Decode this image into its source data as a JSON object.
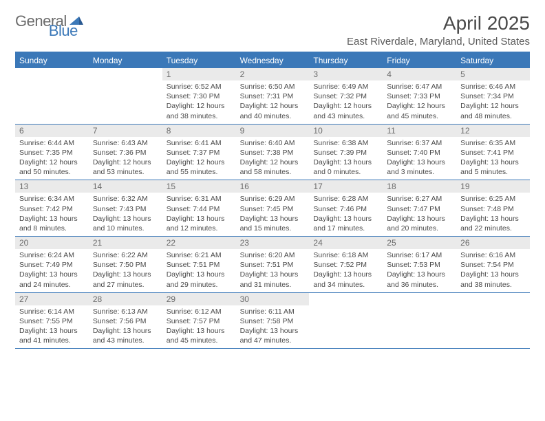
{
  "brand": {
    "part1": "General",
    "part2": "Blue"
  },
  "title": "April 2025",
  "location": "East Riverdale, Maryland, United States",
  "colors": {
    "accent": "#3b78b8",
    "header_text": "#ffffff",
    "daynum_bg": "#eaeaea",
    "body_text": "#4a4a4a",
    "logo_gray": "#6b6b6b"
  },
  "day_names": [
    "Sunday",
    "Monday",
    "Tuesday",
    "Wednesday",
    "Thursday",
    "Friday",
    "Saturday"
  ],
  "weeks": [
    [
      {
        "n": "",
        "sr": "",
        "ss": "",
        "dl": ""
      },
      {
        "n": "",
        "sr": "",
        "ss": "",
        "dl": ""
      },
      {
        "n": "1",
        "sr": "Sunrise: 6:52 AM",
        "ss": "Sunset: 7:30 PM",
        "dl": "Daylight: 12 hours and 38 minutes."
      },
      {
        "n": "2",
        "sr": "Sunrise: 6:50 AM",
        "ss": "Sunset: 7:31 PM",
        "dl": "Daylight: 12 hours and 40 minutes."
      },
      {
        "n": "3",
        "sr": "Sunrise: 6:49 AM",
        "ss": "Sunset: 7:32 PM",
        "dl": "Daylight: 12 hours and 43 minutes."
      },
      {
        "n": "4",
        "sr": "Sunrise: 6:47 AM",
        "ss": "Sunset: 7:33 PM",
        "dl": "Daylight: 12 hours and 45 minutes."
      },
      {
        "n": "5",
        "sr": "Sunrise: 6:46 AM",
        "ss": "Sunset: 7:34 PM",
        "dl": "Daylight: 12 hours and 48 minutes."
      }
    ],
    [
      {
        "n": "6",
        "sr": "Sunrise: 6:44 AM",
        "ss": "Sunset: 7:35 PM",
        "dl": "Daylight: 12 hours and 50 minutes."
      },
      {
        "n": "7",
        "sr": "Sunrise: 6:43 AM",
        "ss": "Sunset: 7:36 PM",
        "dl": "Daylight: 12 hours and 53 minutes."
      },
      {
        "n": "8",
        "sr": "Sunrise: 6:41 AM",
        "ss": "Sunset: 7:37 PM",
        "dl": "Daylight: 12 hours and 55 minutes."
      },
      {
        "n": "9",
        "sr": "Sunrise: 6:40 AM",
        "ss": "Sunset: 7:38 PM",
        "dl": "Daylight: 12 hours and 58 minutes."
      },
      {
        "n": "10",
        "sr": "Sunrise: 6:38 AM",
        "ss": "Sunset: 7:39 PM",
        "dl": "Daylight: 13 hours and 0 minutes."
      },
      {
        "n": "11",
        "sr": "Sunrise: 6:37 AM",
        "ss": "Sunset: 7:40 PM",
        "dl": "Daylight: 13 hours and 3 minutes."
      },
      {
        "n": "12",
        "sr": "Sunrise: 6:35 AM",
        "ss": "Sunset: 7:41 PM",
        "dl": "Daylight: 13 hours and 5 minutes."
      }
    ],
    [
      {
        "n": "13",
        "sr": "Sunrise: 6:34 AM",
        "ss": "Sunset: 7:42 PM",
        "dl": "Daylight: 13 hours and 8 minutes."
      },
      {
        "n": "14",
        "sr": "Sunrise: 6:32 AM",
        "ss": "Sunset: 7:43 PM",
        "dl": "Daylight: 13 hours and 10 minutes."
      },
      {
        "n": "15",
        "sr": "Sunrise: 6:31 AM",
        "ss": "Sunset: 7:44 PM",
        "dl": "Daylight: 13 hours and 12 minutes."
      },
      {
        "n": "16",
        "sr": "Sunrise: 6:29 AM",
        "ss": "Sunset: 7:45 PM",
        "dl": "Daylight: 13 hours and 15 minutes."
      },
      {
        "n": "17",
        "sr": "Sunrise: 6:28 AM",
        "ss": "Sunset: 7:46 PM",
        "dl": "Daylight: 13 hours and 17 minutes."
      },
      {
        "n": "18",
        "sr": "Sunrise: 6:27 AM",
        "ss": "Sunset: 7:47 PM",
        "dl": "Daylight: 13 hours and 20 minutes."
      },
      {
        "n": "19",
        "sr": "Sunrise: 6:25 AM",
        "ss": "Sunset: 7:48 PM",
        "dl": "Daylight: 13 hours and 22 minutes."
      }
    ],
    [
      {
        "n": "20",
        "sr": "Sunrise: 6:24 AM",
        "ss": "Sunset: 7:49 PM",
        "dl": "Daylight: 13 hours and 24 minutes."
      },
      {
        "n": "21",
        "sr": "Sunrise: 6:22 AM",
        "ss": "Sunset: 7:50 PM",
        "dl": "Daylight: 13 hours and 27 minutes."
      },
      {
        "n": "22",
        "sr": "Sunrise: 6:21 AM",
        "ss": "Sunset: 7:51 PM",
        "dl": "Daylight: 13 hours and 29 minutes."
      },
      {
        "n": "23",
        "sr": "Sunrise: 6:20 AM",
        "ss": "Sunset: 7:51 PM",
        "dl": "Daylight: 13 hours and 31 minutes."
      },
      {
        "n": "24",
        "sr": "Sunrise: 6:18 AM",
        "ss": "Sunset: 7:52 PM",
        "dl": "Daylight: 13 hours and 34 minutes."
      },
      {
        "n": "25",
        "sr": "Sunrise: 6:17 AM",
        "ss": "Sunset: 7:53 PM",
        "dl": "Daylight: 13 hours and 36 minutes."
      },
      {
        "n": "26",
        "sr": "Sunrise: 6:16 AM",
        "ss": "Sunset: 7:54 PM",
        "dl": "Daylight: 13 hours and 38 minutes."
      }
    ],
    [
      {
        "n": "27",
        "sr": "Sunrise: 6:14 AM",
        "ss": "Sunset: 7:55 PM",
        "dl": "Daylight: 13 hours and 41 minutes."
      },
      {
        "n": "28",
        "sr": "Sunrise: 6:13 AM",
        "ss": "Sunset: 7:56 PM",
        "dl": "Daylight: 13 hours and 43 minutes."
      },
      {
        "n": "29",
        "sr": "Sunrise: 6:12 AM",
        "ss": "Sunset: 7:57 PM",
        "dl": "Daylight: 13 hours and 45 minutes."
      },
      {
        "n": "30",
        "sr": "Sunrise: 6:11 AM",
        "ss": "Sunset: 7:58 PM",
        "dl": "Daylight: 13 hours and 47 minutes."
      },
      {
        "n": "",
        "sr": "",
        "ss": "",
        "dl": ""
      },
      {
        "n": "",
        "sr": "",
        "ss": "",
        "dl": ""
      },
      {
        "n": "",
        "sr": "",
        "ss": "",
        "dl": ""
      }
    ]
  ]
}
